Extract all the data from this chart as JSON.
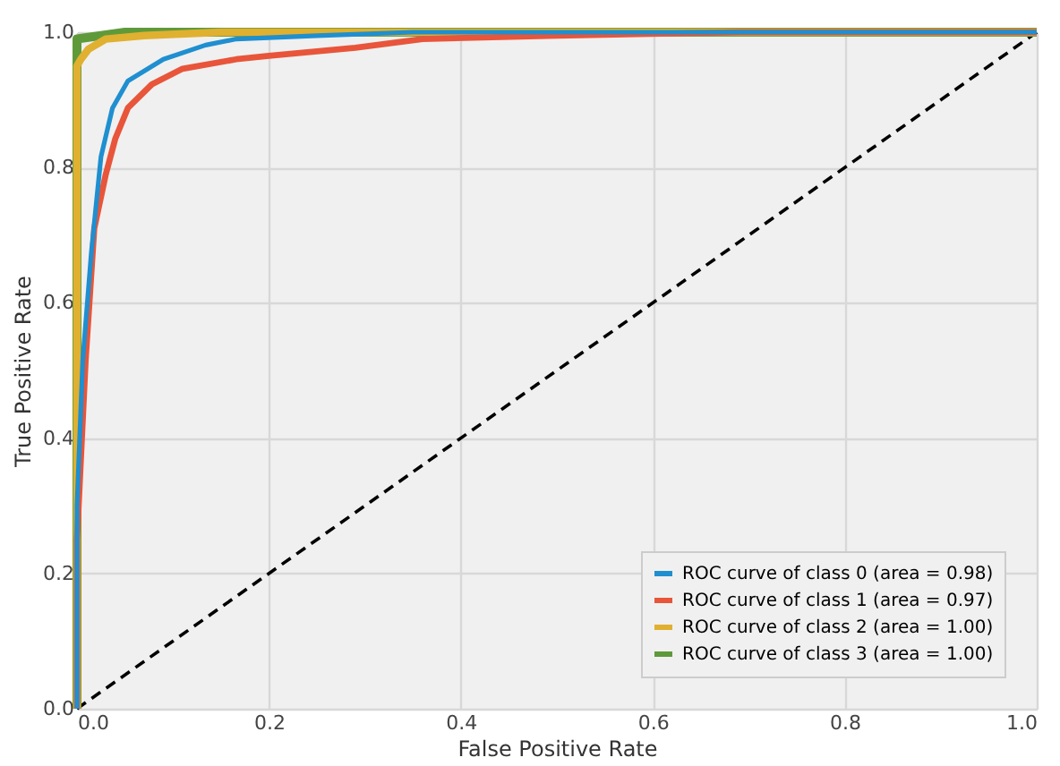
{
  "chart_data": {
    "type": "line",
    "xlabel": "False Positive Rate",
    "ylabel": "True Positive Rate",
    "xlim": [
      0,
      1
    ],
    "ylim": [
      0,
      1
    ],
    "xticks": [
      {
        "value": 0,
        "label": "0.0"
      },
      {
        "value": 0.2,
        "label": "0.2"
      },
      {
        "value": 0.4,
        "label": "0.4"
      },
      {
        "value": 0.6,
        "label": "0.6"
      },
      {
        "value": 0.8,
        "label": "0.8"
      },
      {
        "value": 1,
        "label": "1.0"
      }
    ],
    "yticks": [
      {
        "value": 0,
        "label": "0.0"
      },
      {
        "value": 0.2,
        "label": "0.2"
      },
      {
        "value": 0.4,
        "label": "0.4"
      },
      {
        "value": 0.6,
        "label": "0.6"
      },
      {
        "value": 0.8,
        "label": "0.8"
      },
      {
        "value": 1,
        "label": "1.0"
      }
    ],
    "grid": true,
    "legend": "bottom right",
    "series": [
      {
        "name": "ROC curve of class 0 (area = 0.98)",
        "color": "#1f8fd0",
        "x": [
          0,
          0,
          0.006,
          0.015,
          0.025,
          0.037,
          0.053,
          0.09,
          0.134,
          0.166,
          0.25,
          0.35,
          1
        ],
        "values": [
          0,
          0.3,
          0.515,
          0.675,
          0.816,
          0.888,
          0.928,
          0.96,
          0.981,
          0.99,
          0.995,
          1,
          1
        ]
      },
      {
        "name": "ROC curve of class 1 (area = 0.97)",
        "color": "#e8553a",
        "x": [
          0,
          0,
          0.009,
          0.018,
          0.03,
          0.04,
          0.053,
          0.078,
          0.11,
          0.166,
          0.2,
          0.29,
          0.36,
          0.5,
          0.69,
          1
        ],
        "values": [
          0,
          0.25,
          0.515,
          0.71,
          0.79,
          0.843,
          0.888,
          0.923,
          0.946,
          0.96,
          0.965,
          0.977,
          0.99,
          0.995,
          1,
          1
        ]
      },
      {
        "name": "ROC curve of class 2 (area = 1.00)",
        "color": "#e0b030",
        "x": [
          0,
          0,
          0.004,
          0.012,
          0.03,
          0.07,
          0.15,
          1
        ],
        "values": [
          0,
          0.95,
          0.96,
          0.975,
          0.99,
          0.995,
          1,
          1
        ]
      },
      {
        "name": "ROC curve of class 3 (area = 1.00)",
        "color": "#5f9a3a",
        "x": [
          0,
          0,
          0.05,
          1
        ],
        "values": [
          0,
          0.99,
          1,
          1
        ]
      },
      {
        "color": "#000000",
        "line_style": "dashed",
        "x": [
          0,
          1
        ],
        "values": [
          0,
          1
        ]
      }
    ]
  }
}
